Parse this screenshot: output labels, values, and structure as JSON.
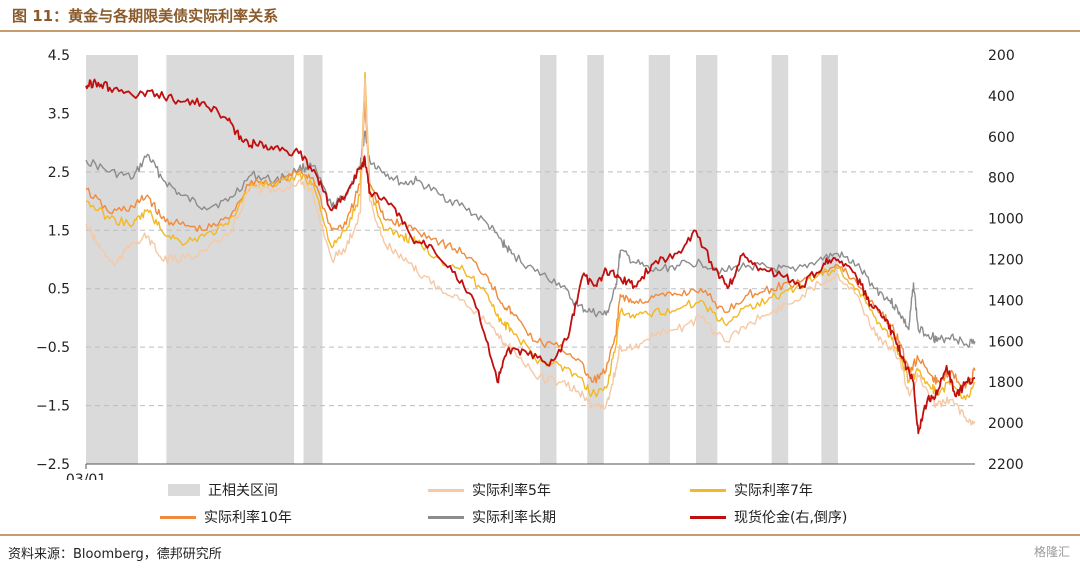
{
  "header": {
    "title": "图 11：黄金与各期限美债实际利率关系"
  },
  "footer": {
    "source": "资料来源：Bloomberg，德邦研究所",
    "watermark": "格隆汇"
  },
  "colors": {
    "shade": "#dadada",
    "r5": "#f6c9a6",
    "r7": "#f2b826",
    "r10": "#f08a3c",
    "long": "#8c8c8c",
    "gold": "#c00f0f",
    "grid": "#bdbdbd"
  },
  "legend": {
    "shade": "正相关区间",
    "r5": "实际利率5年",
    "r7": "实际利率7年",
    "r10": "实际利率10年",
    "long": "实际利率长期",
    "gold": "现货伦金(右,倒序)"
  },
  "chart_data": {
    "type": "line",
    "title": "图 11：黄金与各期限美债实际利率关系",
    "x_start_label": "03/01",
    "x_domain": [
      2003.0,
      2021.8
    ],
    "left_axis": {
      "ylim": [
        -2.5,
        4.5
      ],
      "ticks": [
        4.5,
        3.5,
        2.5,
        1.5,
        0.5,
        -0.5,
        -1.5,
        -2.5
      ],
      "tick_labels": [
        "4.5",
        "3.5",
        "2.5",
        "1.5",
        "0.5",
        "−0.5",
        "−1.5",
        "−2.5"
      ],
      "dashed_grid": [
        2.5,
        1.5,
        0.5,
        -0.5,
        -1.5
      ]
    },
    "right_axis": {
      "ylim": [
        200,
        2200
      ],
      "inverted": true,
      "ticks": [
        200,
        400,
        600,
        800,
        1000,
        1200,
        1400,
        1600,
        1800,
        2000,
        2200
      ]
    },
    "shaded_periods": [
      [
        2003.0,
        2004.1
      ],
      [
        2004.7,
        2007.4
      ],
      [
        2007.6,
        2008.0
      ],
      [
        2012.6,
        2012.95
      ],
      [
        2013.6,
        2013.95
      ],
      [
        2014.9,
        2015.35
      ],
      [
        2015.9,
        2016.35
      ],
      [
        2017.5,
        2017.85
      ],
      [
        2018.55,
        2018.9
      ]
    ],
    "series": [
      {
        "key": "long",
        "name": "实际利率长期",
        "axis": "left",
        "points": [
          [
            2003.0,
            2.7
          ],
          [
            2003.5,
            2.5
          ],
          [
            2004.0,
            2.4
          ],
          [
            2004.3,
            2.8
          ],
          [
            2004.6,
            2.4
          ],
          [
            2005.0,
            2.1
          ],
          [
            2005.5,
            1.9
          ],
          [
            2006.0,
            2.0
          ],
          [
            2006.5,
            2.45
          ],
          [
            2007.0,
            2.35
          ],
          [
            2007.5,
            2.55
          ],
          [
            2007.8,
            2.6
          ],
          [
            2008.2,
            1.9
          ],
          [
            2008.5,
            2.1
          ],
          [
            2008.8,
            2.6
          ],
          [
            2008.9,
            3.2
          ],
          [
            2009.0,
            2.7
          ],
          [
            2009.3,
            2.5
          ],
          [
            2009.7,
            2.3
          ],
          [
            2010.0,
            2.35
          ],
          [
            2010.5,
            2.1
          ],
          [
            2011.0,
            1.9
          ],
          [
            2011.5,
            1.6
          ],
          [
            2011.8,
            1.3
          ],
          [
            2012.0,
            1.1
          ],
          [
            2012.5,
            0.8
          ],
          [
            2013.0,
            0.6
          ],
          [
            2013.4,
            0.2
          ],
          [
            2013.7,
            0.1
          ],
          [
            2014.0,
            0.05
          ],
          [
            2014.2,
            0.5
          ],
          [
            2014.3,
            1.15
          ],
          [
            2014.6,
            0.95
          ],
          [
            2015.0,
            0.8
          ],
          [
            2015.5,
            0.9
          ],
          [
            2016.0,
            0.95
          ],
          [
            2016.5,
            0.8
          ],
          [
            2017.0,
            0.9
          ],
          [
            2017.5,
            0.85
          ],
          [
            2018.0,
            0.8
          ],
          [
            2018.5,
            1.0
          ],
          [
            2018.9,
            1.1
          ],
          [
            2019.3,
            0.9
          ],
          [
            2019.7,
            0.5
          ],
          [
            2020.0,
            0.3
          ],
          [
            2020.2,
            0.1
          ],
          [
            2020.4,
            -0.2
          ],
          [
            2020.5,
            0.6
          ],
          [
            2020.6,
            -0.2
          ],
          [
            2020.9,
            -0.3
          ],
          [
            2021.0,
            -0.4
          ],
          [
            2021.3,
            -0.3
          ],
          [
            2021.6,
            -0.45
          ],
          [
            2021.8,
            -0.4
          ]
        ]
      },
      {
        "key": "r10",
        "name": "实际利率10年",
        "axis": "left",
        "points": [
          [
            2003.0,
            2.2
          ],
          [
            2003.5,
            1.8
          ],
          [
            2004.0,
            1.9
          ],
          [
            2004.3,
            2.1
          ],
          [
            2004.6,
            1.7
          ],
          [
            2005.0,
            1.6
          ],
          [
            2005.5,
            1.5
          ],
          [
            2006.0,
            1.7
          ],
          [
            2006.5,
            2.35
          ],
          [
            2007.0,
            2.3
          ],
          [
            2007.5,
            2.5
          ],
          [
            2007.8,
            2.4
          ],
          [
            2008.2,
            1.5
          ],
          [
            2008.5,
            1.6
          ],
          [
            2008.8,
            2.3
          ],
          [
            2008.9,
            3.7
          ],
          [
            2009.0,
            2.3
          ],
          [
            2009.3,
            1.7
          ],
          [
            2009.7,
            1.6
          ],
          [
            2010.0,
            1.5
          ],
          [
            2010.5,
            1.3
          ],
          [
            2011.0,
            1.1
          ],
          [
            2011.5,
            0.7
          ],
          [
            2011.8,
            0.25
          ],
          [
            2012.0,
            0.1
          ],
          [
            2012.5,
            -0.4
          ],
          [
            2013.0,
            -0.5
          ],
          [
            2013.4,
            -0.7
          ],
          [
            2013.7,
            -1.1
          ],
          [
            2014.0,
            -0.9
          ],
          [
            2014.2,
            -0.3
          ],
          [
            2014.3,
            0.4
          ],
          [
            2014.6,
            0.25
          ],
          [
            2015.0,
            0.35
          ],
          [
            2015.5,
            0.4
          ],
          [
            2016.0,
            0.5
          ],
          [
            2016.5,
            0.1
          ],
          [
            2017.0,
            0.4
          ],
          [
            2017.5,
            0.5
          ],
          [
            2018.0,
            0.6
          ],
          [
            2018.5,
            0.8
          ],
          [
            2018.9,
            0.9
          ],
          [
            2019.3,
            0.6
          ],
          [
            2019.7,
            0.2
          ],
          [
            2020.0,
            -0.1
          ],
          [
            2020.2,
            -0.4
          ],
          [
            2020.4,
            -0.9
          ],
          [
            2020.6,
            -0.7
          ],
          [
            2020.9,
            -1.0
          ],
          [
            2021.0,
            -1.1
          ],
          [
            2021.3,
            -0.9
          ],
          [
            2021.6,
            -1.2
          ],
          [
            2021.8,
            -0.9
          ]
        ]
      },
      {
        "key": "r7",
        "name": "实际利率7年",
        "axis": "left",
        "points": [
          [
            2003.0,
            2.0
          ],
          [
            2003.5,
            1.7
          ],
          [
            2004.0,
            1.6
          ],
          [
            2004.3,
            1.85
          ],
          [
            2004.6,
            1.5
          ],
          [
            2005.0,
            1.3
          ],
          [
            2005.5,
            1.4
          ],
          [
            2006.0,
            1.6
          ],
          [
            2006.5,
            2.3
          ],
          [
            2007.0,
            2.25
          ],
          [
            2007.5,
            2.45
          ],
          [
            2007.8,
            2.3
          ],
          [
            2008.2,
            1.2
          ],
          [
            2008.5,
            1.5
          ],
          [
            2008.8,
            2.1
          ],
          [
            2008.9,
            4.2
          ],
          [
            2009.0,
            2.2
          ],
          [
            2009.3,
            1.5
          ],
          [
            2009.7,
            1.4
          ],
          [
            2010.0,
            1.3
          ],
          [
            2010.5,
            1.0
          ],
          [
            2011.0,
            0.8
          ],
          [
            2011.5,
            0.4
          ],
          [
            2011.8,
            -0.1
          ],
          [
            2012.0,
            -0.2
          ],
          [
            2012.5,
            -0.7
          ],
          [
            2013.0,
            -0.8
          ],
          [
            2013.4,
            -1.0
          ],
          [
            2013.7,
            -1.3
          ],
          [
            2014.0,
            -1.2
          ],
          [
            2014.2,
            -0.5
          ],
          [
            2014.3,
            0.1
          ],
          [
            2014.6,
            0.0
          ],
          [
            2015.0,
            0.1
          ],
          [
            2015.5,
            0.15
          ],
          [
            2016.0,
            0.3
          ],
          [
            2016.5,
            -0.1
          ],
          [
            2017.0,
            0.2
          ],
          [
            2017.5,
            0.35
          ],
          [
            2018.0,
            0.5
          ],
          [
            2018.5,
            0.75
          ],
          [
            2018.9,
            0.85
          ],
          [
            2019.3,
            0.5
          ],
          [
            2019.7,
            0.0
          ],
          [
            2020.0,
            -0.3
          ],
          [
            2020.2,
            -0.6
          ],
          [
            2020.4,
            -1.1
          ],
          [
            2020.6,
            -0.9
          ],
          [
            2020.9,
            -1.2
          ],
          [
            2021.0,
            -1.3
          ],
          [
            2021.3,
            -1.1
          ],
          [
            2021.6,
            -1.4
          ],
          [
            2021.8,
            -1.1
          ]
        ]
      },
      {
        "key": "r5",
        "name": "实际利率5年",
        "axis": "left",
        "points": [
          [
            2003.0,
            1.6
          ],
          [
            2003.3,
            1.2
          ],
          [
            2003.6,
            0.9
          ],
          [
            2004.0,
            1.3
          ],
          [
            2004.3,
            1.4
          ],
          [
            2004.6,
            1.0
          ],
          [
            2005.0,
            1.0
          ],
          [
            2005.5,
            1.15
          ],
          [
            2006.0,
            1.4
          ],
          [
            2006.5,
            2.25
          ],
          [
            2007.0,
            2.15
          ],
          [
            2007.5,
            2.35
          ],
          [
            2007.8,
            2.1
          ],
          [
            2008.2,
            1.0
          ],
          [
            2008.5,
            1.2
          ],
          [
            2008.8,
            1.8
          ],
          [
            2008.9,
            4.1
          ],
          [
            2009.0,
            2.0
          ],
          [
            2009.3,
            1.3
          ],
          [
            2009.7,
            1.0
          ],
          [
            2010.0,
            0.8
          ],
          [
            2010.5,
            0.5
          ],
          [
            2011.0,
            0.3
          ],
          [
            2011.5,
            -0.1
          ],
          [
            2011.8,
            -0.4
          ],
          [
            2012.0,
            -0.5
          ],
          [
            2012.5,
            -1.0
          ],
          [
            2013.0,
            -1.1
          ],
          [
            2013.4,
            -1.25
          ],
          [
            2013.7,
            -1.5
          ],
          [
            2014.0,
            -1.5
          ],
          [
            2014.2,
            -0.9
          ],
          [
            2014.3,
            -0.5
          ],
          [
            2014.6,
            -0.5
          ],
          [
            2015.0,
            -0.3
          ],
          [
            2015.5,
            -0.2
          ],
          [
            2016.0,
            0.0
          ],
          [
            2016.5,
            -0.4
          ],
          [
            2017.0,
            -0.1
          ],
          [
            2017.5,
            0.1
          ],
          [
            2018.0,
            0.3
          ],
          [
            2018.5,
            0.6
          ],
          [
            2018.9,
            0.75
          ],
          [
            2019.3,
            0.4
          ],
          [
            2019.7,
            -0.3
          ],
          [
            2020.0,
            -0.5
          ],
          [
            2020.2,
            -0.7
          ],
          [
            2020.4,
            -1.3
          ],
          [
            2020.6,
            -1.0
          ],
          [
            2020.9,
            -1.4
          ],
          [
            2021.0,
            -1.5
          ],
          [
            2021.3,
            -1.4
          ],
          [
            2021.6,
            -1.7
          ],
          [
            2021.8,
            -1.8
          ]
        ]
      },
      {
        "key": "gold",
        "name": "现货伦金(右,倒序)",
        "axis": "right",
        "points": [
          [
            2003.0,
            350
          ],
          [
            2003.2,
            330
          ],
          [
            2003.5,
            360
          ],
          [
            2004.0,
            400
          ],
          [
            2004.5,
            390
          ],
          [
            2005.0,
            430
          ],
          [
            2005.5,
            430
          ],
          [
            2006.0,
            520
          ],
          [
            2006.3,
            620
          ],
          [
            2006.6,
            640
          ],
          [
            2007.0,
            650
          ],
          [
            2007.5,
            680
          ],
          [
            2007.9,
            800
          ],
          [
            2008.2,
            960
          ],
          [
            2008.5,
            880
          ],
          [
            2008.8,
            750
          ],
          [
            2008.9,
            710
          ],
          [
            2009.0,
            870
          ],
          [
            2009.5,
            940
          ],
          [
            2009.9,
            1100
          ],
          [
            2010.3,
            1130
          ],
          [
            2010.8,
            1260
          ],
          [
            2011.3,
            1450
          ],
          [
            2011.7,
            1800
          ],
          [
            2011.9,
            1650
          ],
          [
            2012.3,
            1650
          ],
          [
            2012.8,
            1720
          ],
          [
            2013.2,
            1580
          ],
          [
            2013.5,
            1280
          ],
          [
            2013.8,
            1330
          ],
          [
            2014.0,
            1250
          ],
          [
            2014.3,
            1290
          ],
          [
            2014.6,
            1330
          ],
          [
            2015.0,
            1220
          ],
          [
            2015.5,
            1170
          ],
          [
            2015.9,
            1060
          ],
          [
            2016.3,
            1250
          ],
          [
            2016.6,
            1330
          ],
          [
            2016.9,
            1170
          ],
          [
            2017.3,
            1250
          ],
          [
            2017.8,
            1280
          ],
          [
            2018.1,
            1340
          ],
          [
            2018.6,
            1220
          ],
          [
            2018.9,
            1200
          ],
          [
            2019.3,
            1290
          ],
          [
            2019.6,
            1420
          ],
          [
            2019.9,
            1500
          ],
          [
            2020.1,
            1580
          ],
          [
            2020.3,
            1700
          ],
          [
            2020.5,
            1800
          ],
          [
            2020.6,
            2050
          ],
          [
            2020.8,
            1880
          ],
          [
            2021.0,
            1860
          ],
          [
            2021.2,
            1720
          ],
          [
            2021.4,
            1870
          ],
          [
            2021.6,
            1800
          ],
          [
            2021.8,
            1780
          ]
        ]
      }
    ]
  }
}
